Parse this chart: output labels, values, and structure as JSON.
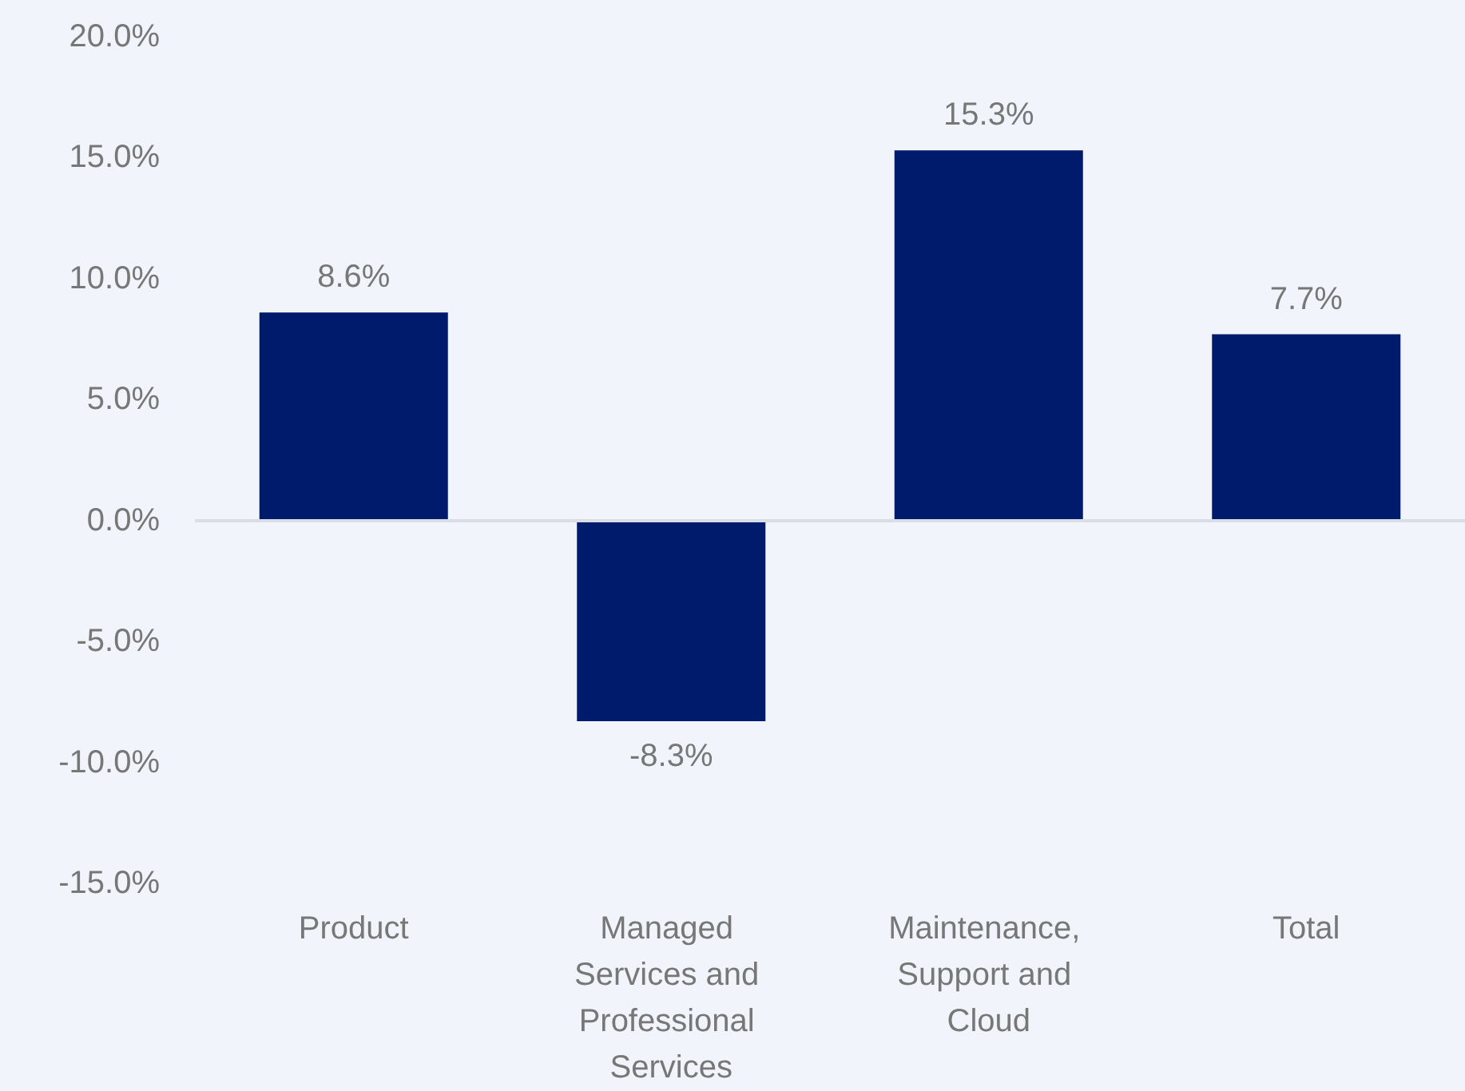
{
  "chart_data": {
    "type": "bar",
    "categories": [
      "Product",
      "Managed Services and Professional Services",
      "Maintenance, Support and Cloud",
      "Total"
    ],
    "values": [
      8.6,
      -8.3,
      15.3,
      7.7
    ],
    "color": "#001b6b",
    "value_labels": [
      "8.6%",
      "-8.3%",
      "15.3%",
      "7.7%"
    ],
    "ylim": [
      -15,
      20
    ],
    "yticks": [
      {
        "value": -15,
        "label": "-15.0%"
      },
      {
        "value": -10,
        "label": "-10.0%"
      },
      {
        "value": -5,
        "label": "-5.0%"
      },
      {
        "value": 0,
        "label": "0.0%"
      },
      {
        "value": 5,
        "label": "5.0%"
      },
      {
        "value": 10,
        "label": "10.0%"
      },
      {
        "value": 15,
        "label": "15.0%"
      },
      {
        "value": 20,
        "label": "20.0%"
      }
    ],
    "ref_lines": [
      {
        "axis": "y",
        "value": 0,
        "color": "#d9dde5"
      }
    ],
    "grid": false
  }
}
